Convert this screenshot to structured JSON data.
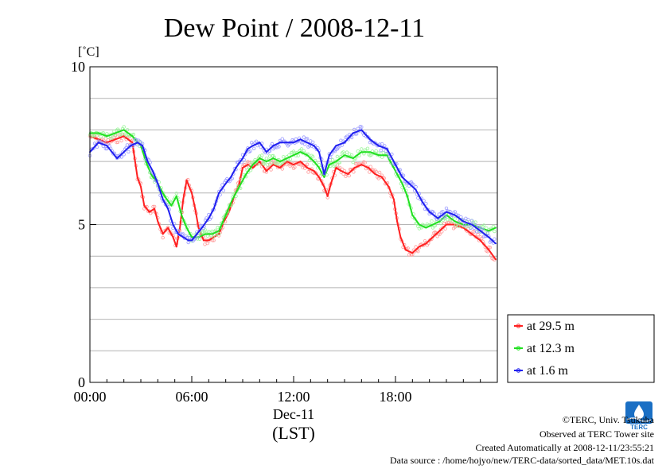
{
  "chart_data": {
    "type": "line",
    "title": "Dew Point / 2008-12-11",
    "ylabel": "[˚C]",
    "xlabel_date": "Dec-11",
    "xlabel_zone": "(LST)",
    "xlim": [
      0,
      24
    ],
    "ylim": [
      0,
      10
    ],
    "x_ticks": [
      {
        "value": 0,
        "label": "00:00"
      },
      {
        "value": 6,
        "label": "06:00"
      },
      {
        "value": 12,
        "label": "12:00"
      },
      {
        "value": 18,
        "label": "18:00"
      }
    ],
    "y_ticks": [
      {
        "value": 0,
        "label": "0"
      },
      {
        "value": 5,
        "label": "5"
      },
      {
        "value": 10,
        "label": "10"
      }
    ],
    "grid": true,
    "legend_position": "right-bottom",
    "series": [
      {
        "name": "at 29.5 m",
        "color": "#ff2020",
        "light": "#ff9a9a",
        "x": [
          0,
          0.5,
          1,
          1.5,
          2,
          2.5,
          2.8,
          3,
          3.2,
          3.5,
          3.8,
          4,
          4.3,
          4.6,
          4.9,
          5.1,
          5.3,
          5.5,
          5.7,
          6,
          6.2,
          6.4,
          6.7,
          7,
          7.3,
          7.6,
          7.9,
          8.2,
          8.5,
          8.8,
          9,
          9.3,
          9.6,
          10,
          10.4,
          10.8,
          11.2,
          11.6,
          12,
          12.4,
          12.8,
          13.2,
          13.5,
          13.8,
          14,
          14.2,
          14.5,
          14.8,
          15.2,
          15.6,
          16,
          16.4,
          16.8,
          17.2,
          17.6,
          17.9,
          18.1,
          18.3,
          18.6,
          19,
          19.4,
          19.8,
          20.2,
          20.6,
          21,
          21.5,
          22,
          22.5,
          23,
          23.5,
          23.9
        ],
        "values": [
          7.8,
          7.7,
          7.6,
          7.7,
          7.8,
          7.6,
          6.5,
          6.2,
          5.6,
          5.4,
          5.5,
          5.1,
          4.7,
          4.9,
          4.6,
          4.3,
          4.9,
          5.8,
          6.4,
          6.0,
          5.5,
          4.9,
          4.5,
          4.5,
          4.6,
          4.7,
          5.1,
          5.4,
          5.9,
          6.3,
          6.8,
          6.9,
          6.8,
          7.0,
          6.7,
          6.9,
          6.8,
          7.0,
          6.9,
          7.0,
          6.8,
          6.7,
          6.5,
          6.2,
          5.9,
          6.3,
          6.8,
          6.7,
          6.6,
          6.8,
          6.9,
          6.8,
          6.6,
          6.5,
          6.2,
          5.8,
          5.1,
          4.6,
          4.2,
          4.1,
          4.3,
          4.4,
          4.6,
          4.8,
          5.0,
          5.0,
          4.9,
          4.7,
          4.5,
          4.2,
          3.9
        ]
      },
      {
        "name": "at 12.3 m",
        "color": "#20e020",
        "light": "#9cf59c",
        "x": [
          0,
          0.5,
          1,
          1.5,
          2,
          2.5,
          3,
          3.3,
          3.6,
          4,
          4.4,
          4.8,
          5.1,
          5.4,
          5.7,
          6,
          6.4,
          6.8,
          7.2,
          7.6,
          8,
          8.4,
          8.8,
          9.2,
          9.6,
          10,
          10.4,
          10.8,
          11.2,
          11.6,
          12,
          12.4,
          12.8,
          13.2,
          13.5,
          13.8,
          14.1,
          14.5,
          15,
          15.5,
          16,
          16.5,
          17,
          17.5,
          17.8,
          18.1,
          18.4,
          18.7,
          19,
          19.4,
          19.8,
          20.2,
          20.6,
          21,
          21.5,
          22,
          22.5,
          23,
          23.5,
          23.9
        ],
        "values": [
          7.9,
          7.9,
          7.8,
          7.9,
          8.0,
          7.8,
          7.5,
          7.0,
          6.6,
          6.3,
          5.9,
          5.6,
          5.9,
          5.3,
          4.9,
          4.6,
          4.6,
          4.7,
          4.7,
          4.8,
          5.3,
          5.8,
          6.2,
          6.6,
          6.9,
          7.1,
          7.0,
          7.1,
          7.0,
          7.1,
          7.2,
          7.3,
          7.2,
          7.0,
          6.8,
          6.5,
          6.9,
          7.0,
          7.2,
          7.1,
          7.3,
          7.3,
          7.2,
          7.2,
          6.9,
          6.6,
          6.3,
          5.9,
          5.3,
          5.0,
          4.9,
          5.0,
          5.1,
          5.3,
          5.1,
          5.0,
          5.0,
          4.9,
          4.8,
          4.9
        ]
      },
      {
        "name": "at 1.6 m",
        "color": "#2020f0",
        "light": "#9a9aff",
        "x": [
          0,
          0.5,
          1,
          1.3,
          1.6,
          2,
          2.4,
          2.8,
          3.1,
          3.4,
          3.7,
          4,
          4.3,
          4.6,
          4.9,
          5.2,
          5.5,
          5.8,
          6,
          6.3,
          6.6,
          7,
          7.3,
          7.6,
          8,
          8.3,
          8.6,
          9,
          9.3,
          9.6,
          10,
          10.4,
          10.8,
          11.2,
          11.6,
          12,
          12.4,
          12.8,
          13.2,
          13.5,
          13.8,
          14.1,
          14.5,
          15,
          15.5,
          16,
          16.5,
          17,
          17.5,
          18,
          18.4,
          18.8,
          19.2,
          19.6,
          20,
          20.5,
          21,
          21.5,
          22,
          22.5,
          23,
          23.5,
          23.9
        ],
        "values": [
          7.3,
          7.6,
          7.5,
          7.3,
          7.1,
          7.3,
          7.5,
          7.6,
          7.5,
          7.0,
          6.7,
          6.3,
          5.8,
          5.5,
          5.0,
          4.7,
          4.6,
          4.5,
          4.5,
          4.7,
          4.9,
          5.2,
          5.5,
          6.0,
          6.3,
          6.5,
          6.8,
          7.1,
          7.4,
          7.5,
          7.6,
          7.3,
          7.5,
          7.6,
          7.6,
          7.6,
          7.7,
          7.6,
          7.5,
          7.3,
          6.6,
          7.2,
          7.5,
          7.6,
          7.9,
          8.0,
          7.7,
          7.5,
          7.4,
          6.9,
          6.5,
          6.3,
          6.1,
          5.7,
          5.4,
          5.2,
          5.4,
          5.3,
          5.1,
          5.0,
          4.8,
          4.6,
          4.4
        ]
      }
    ]
  },
  "credits": {
    "copyright": "©TERC, Univ. Tsukuba",
    "observed": "Observed at TERC Tower site",
    "created": "Created Automatically at 2008-12-11/23:55:21",
    "source": "Data source : /home/hojyo/new/TERC-data/sorted_data/MET.10s.dat"
  },
  "logo": {
    "text": "TERC",
    "color": "#1a6fc4"
  }
}
